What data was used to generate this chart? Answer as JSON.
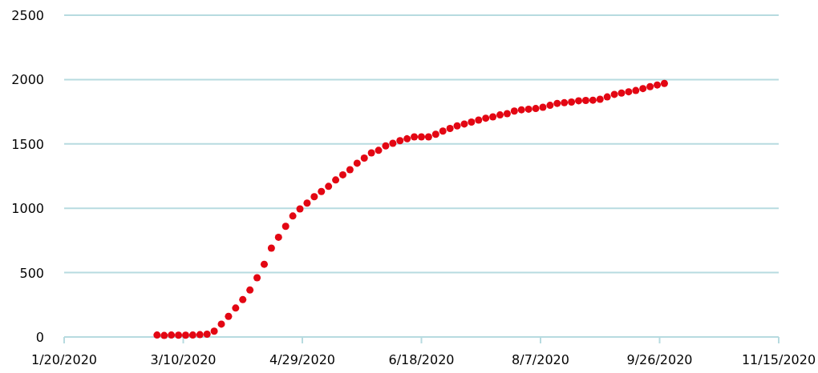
{
  "chart_data": {
    "type": "scatter",
    "x": [
      "2020-02-28",
      "2020-03-02",
      "2020-03-05",
      "2020-03-08",
      "2020-03-11",
      "2020-03-14",
      "2020-03-17",
      "2020-03-20",
      "2020-03-23",
      "2020-03-26",
      "2020-03-29",
      "2020-04-01",
      "2020-04-04",
      "2020-04-07",
      "2020-04-10",
      "2020-04-13",
      "2020-04-16",
      "2020-04-19",
      "2020-04-22",
      "2020-04-25",
      "2020-04-28",
      "2020-05-01",
      "2020-05-04",
      "2020-05-07",
      "2020-05-10",
      "2020-05-13",
      "2020-05-16",
      "2020-05-19",
      "2020-05-22",
      "2020-05-25",
      "2020-05-28",
      "2020-05-31",
      "2020-06-03",
      "2020-06-06",
      "2020-06-09",
      "2020-06-12",
      "2020-06-15",
      "2020-06-18",
      "2020-06-21",
      "2020-06-24",
      "2020-06-27",
      "2020-06-30",
      "2020-07-03",
      "2020-07-06",
      "2020-07-09",
      "2020-07-12",
      "2020-07-15",
      "2020-07-18",
      "2020-07-21",
      "2020-07-24",
      "2020-07-27",
      "2020-07-30",
      "2020-08-02",
      "2020-08-05",
      "2020-08-08",
      "2020-08-11",
      "2020-08-14",
      "2020-08-17",
      "2020-08-20",
      "2020-08-23",
      "2020-08-26",
      "2020-08-29",
      "2020-09-01",
      "2020-09-04",
      "2020-09-07",
      "2020-09-10",
      "2020-09-13",
      "2020-09-16",
      "2020-09-19",
      "2020-09-22",
      "2020-09-25",
      "2020-09-28"
    ],
    "series": [
      {
        "color": "#e30613",
        "values": [
          15,
          12,
          15,
          14,
          14,
          15,
          18,
          22,
          45,
          100,
          160,
          225,
          290,
          365,
          460,
          565,
          690,
          775,
          860,
          940,
          995,
          1040,
          1090,
          1130,
          1170,
          1220,
          1260,
          1300,
          1350,
          1390,
          1430,
          1450,
          1485,
          1505,
          1525,
          1540,
          1555,
          1555,
          1555,
          1575,
          1600,
          1620,
          1640,
          1655,
          1670,
          1685,
          1700,
          1710,
          1725,
          1735,
          1755,
          1765,
          1770,
          1775,
          1785,
          1800,
          1815,
          1820,
          1825,
          1835,
          1838,
          1840,
          1847,
          1865,
          1885,
          1895,
          1905,
          1915,
          1930,
          1945,
          1958,
          1970
        ]
      }
    ],
    "xlim": [
      "2020-01-20",
      "2020-11-15"
    ],
    "xticks": [
      {
        "value": "2020-01-20",
        "label": "1/20/2020"
      },
      {
        "value": "2020-03-10",
        "label": "3/10/2020"
      },
      {
        "value": "2020-04-29",
        "label": "4/29/2020"
      },
      {
        "value": "2020-06-18",
        "label": "6/18/2020"
      },
      {
        "value": "2020-08-07",
        "label": "8/7/2020"
      },
      {
        "value": "2020-09-26",
        "label": "9/26/2020"
      },
      {
        "value": "2020-11-15",
        "label": "11/15/2020"
      }
    ],
    "ylim": [
      0,
      2500
    ],
    "yticks": [
      0,
      500,
      1000,
      1500,
      2000,
      2500
    ],
    "grid": "y",
    "marker": "circle"
  }
}
